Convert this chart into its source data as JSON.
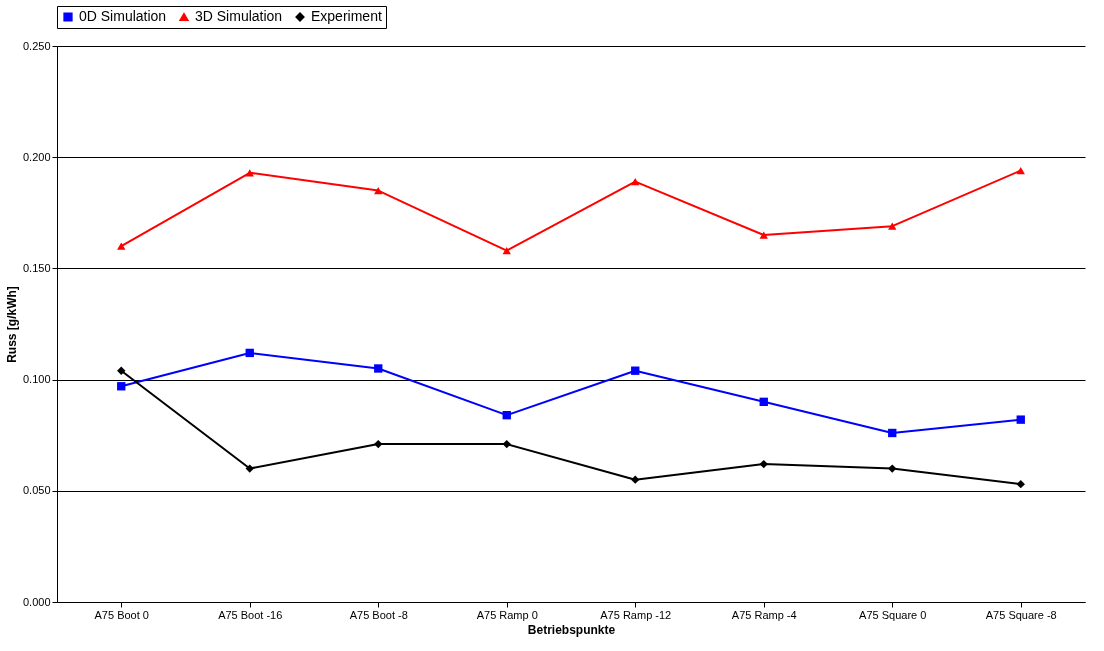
{
  "chart_data": {
    "type": "line",
    "xlabel": "Betriebspunkte",
    "ylabel": "Russ [g/kWh]",
    "categories": [
      "A75 Boot 0",
      "A75 Boot -16",
      "A75 Boot -8",
      "A75 Ramp 0",
      "A75 Ramp -12",
      "A75 Ramp -4",
      "A75 Square 0",
      "A75 Square -8"
    ],
    "series": [
      {
        "name": "0D Simulation",
        "color": "#0000ff",
        "marker": "square",
        "values": [
          0.097,
          0.112,
          0.105,
          0.084,
          0.104,
          0.09,
          0.076,
          0.082
        ]
      },
      {
        "name": "3D Simulation",
        "color": "#ff0000",
        "marker": "triangle",
        "values": [
          0.16,
          0.193,
          0.185,
          0.158,
          0.189,
          0.165,
          0.169,
          0.194
        ]
      },
      {
        "name": "Experiment",
        "color": "#000000",
        "marker": "diamond",
        "values": [
          0.104,
          0.06,
          0.071,
          0.071,
          0.055,
          0.062,
          0.06,
          0.053
        ]
      }
    ],
    "ylim": [
      0,
      0.25
    ],
    "yticks": [
      {
        "value": 0,
        "label": "0.000"
      },
      {
        "value": 0.05,
        "label": "0.050"
      },
      {
        "value": 0.1,
        "label": "0.100"
      },
      {
        "value": 0.15,
        "label": "0.150"
      },
      {
        "value": 0.2,
        "label": "0.200"
      },
      {
        "value": 0.25,
        "label": "0.250"
      }
    ],
    "grid": "y",
    "legend": "top",
    "line_style": "solid"
  }
}
